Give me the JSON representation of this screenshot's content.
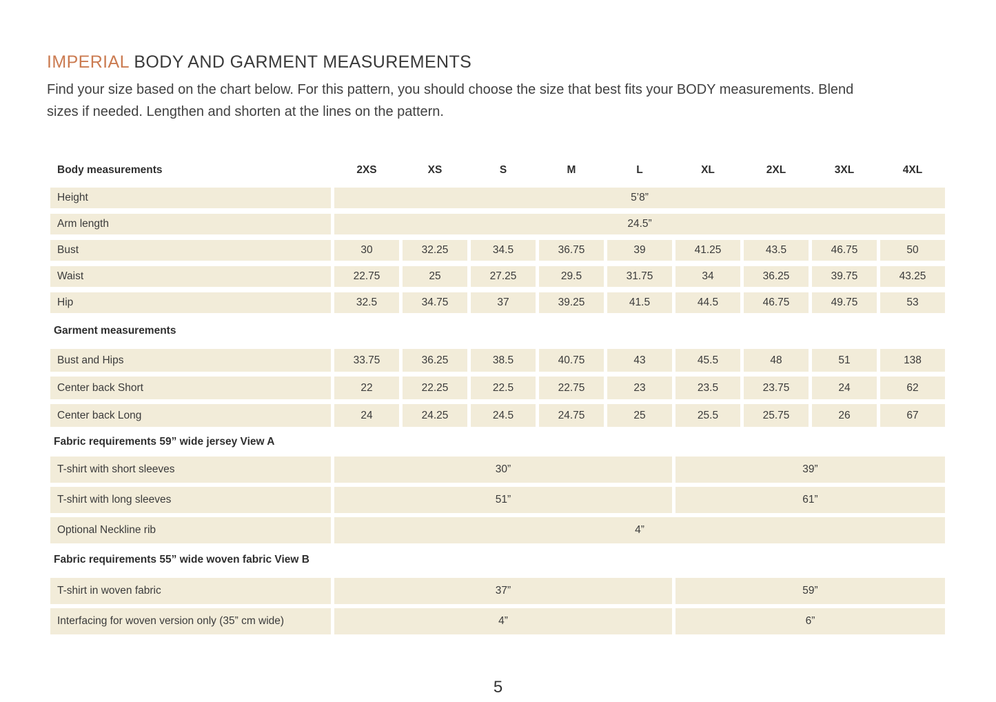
{
  "page": {
    "title_highlight": "IMPERIAL",
    "title_rest": " BODY AND GARMENT MEASUREMENTS",
    "intro": "Find your size based on the chart below. For this pattern, you should choose the size that best fits your BODY measurements. Blend sizes if needed. Lengthen and shorten at the lines on the pattern.",
    "page_number": "5"
  },
  "colors": {
    "accent": "#cb7b51",
    "band": "#f2ecd9",
    "text": "#3c3c3c"
  },
  "table": {
    "header": {
      "label": "Body measurements",
      "sizes": [
        "2XS",
        "XS",
        "S",
        "M",
        "L",
        "XL",
        "2XL",
        "3XL",
        "4XL"
      ]
    },
    "body_rows": [
      {
        "label": "Height",
        "span_value": "5’8”"
      },
      {
        "label": "Arm length",
        "span_value": "24.5”"
      },
      {
        "label": "Bust",
        "values": [
          "30",
          "32.25",
          "34.5",
          "36.75",
          "39",
          "41.25",
          "43.5",
          "46.75",
          "50"
        ]
      },
      {
        "label": "Waist",
        "values": [
          "22.75",
          "25",
          "27.25",
          "29.5",
          "31.75",
          "34",
          "36.25",
          "39.75",
          "43.25"
        ]
      },
      {
        "label": "Hip",
        "values": [
          "32.5",
          "34.75",
          "37",
          "39.25",
          "41.5",
          "44.5",
          "46.75",
          "49.75",
          "53"
        ]
      }
    ],
    "garment_section_label": "Garment measurements",
    "garment_rows": [
      {
        "label": "Bust and Hips",
        "values": [
          "33.75",
          "36.25",
          "38.5",
          "40.75",
          "43",
          "45.5",
          "48",
          "51",
          "138"
        ]
      },
      {
        "label": "Center back Short",
        "values": [
          "22",
          "22.25",
          "22.5",
          "22.75",
          "23",
          "23.5",
          "23.75",
          "24",
          "62"
        ]
      },
      {
        "label": "Center back Long",
        "values": [
          "24",
          "24.25",
          "24.5",
          "24.75",
          "25",
          "25.5",
          "25.75",
          "26",
          "67"
        ]
      }
    ],
    "fabric_a_section_label": "Fabric requirements 59” wide jersey View A",
    "fabric_a_rows": [
      {
        "label": "T-shirt with short sleeves",
        "left": "30”",
        "right": "39”"
      },
      {
        "label": "T-shirt with long sleeves",
        "left": "51”",
        "right": "61”"
      }
    ],
    "fabric_a_span_row": {
      "label": "Optional Neckline rib",
      "span_value": "4”"
    },
    "fabric_b_section_label": "Fabric requirements 55” wide woven fabric View B",
    "fabric_b_rows": [
      {
        "label": "T-shirt in woven fabric",
        "left": "37”",
        "right": "59”"
      },
      {
        "label": "Interfacing for woven version only (35” cm wide)",
        "left": "4”",
        "right": "6”"
      }
    ]
  }
}
